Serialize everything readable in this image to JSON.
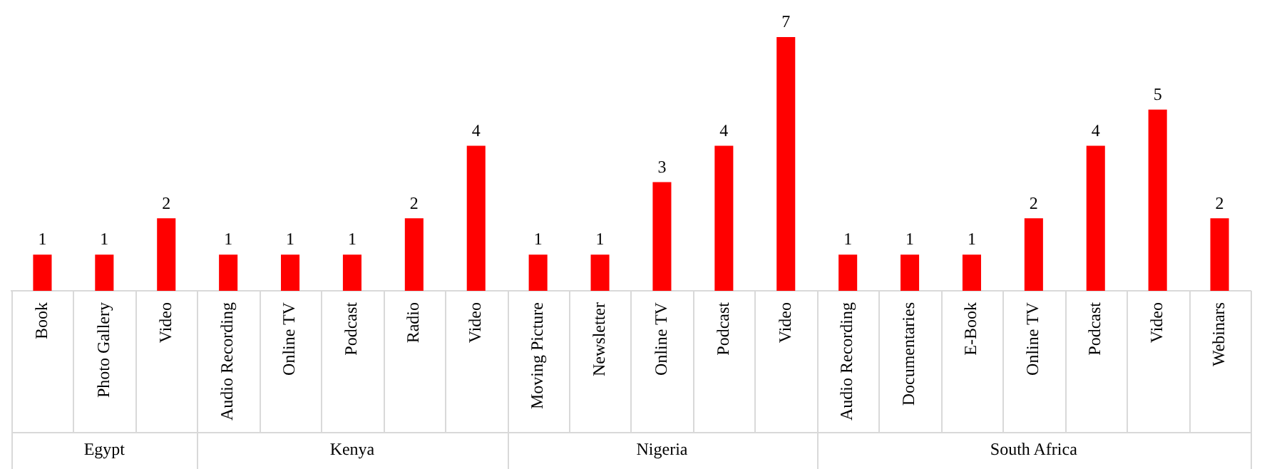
{
  "chart_data": {
    "type": "bar",
    "categories": [
      "Book",
      "Photo Gallery",
      "Video",
      "Audio Recording",
      "Online TV",
      "Podcast",
      "Radio",
      "Video",
      "Moving Picture",
      "Newsletter",
      "Online TV",
      "Podcast",
      "Video",
      "Audio Recording",
      "Documentaries",
      "E-Book",
      "Online TV",
      "Podcast",
      "Video",
      "Webinars"
    ],
    "series": [
      {
        "color": "#ff0000",
        "values": [
          1,
          1,
          2,
          null,
          null,
          null,
          null,
          null,
          null,
          null,
          null,
          null,
          null,
          null,
          null,
          null,
          null,
          null,
          null,
          null
        ]
      },
      {
        "color": "#ff0000",
        "values": [
          null,
          null,
          null,
          1,
          1,
          1,
          2,
          4,
          null,
          null,
          null,
          null,
          null,
          null,
          null,
          null,
          null,
          null,
          null,
          null
        ]
      },
      {
        "color": "#ff0000",
        "values": [
          null,
          null,
          null,
          null,
          null,
          null,
          null,
          null,
          1,
          1,
          3,
          4,
          7,
          null,
          null,
          null,
          null,
          null,
          null,
          null
        ]
      },
      {
        "color": "#ff0000",
        "values": [
          null,
          null,
          null,
          null,
          null,
          null,
          null,
          null,
          null,
          null,
          null,
          null,
          null,
          1,
          1,
          1,
          2,
          4,
          5,
          2
        ]
      }
    ],
    "annotations": [
      "Egypt",
      "Kenya",
      "Nigeria",
      "South Africa"
    ],
    "data_labels": true,
    "tick_labels": "x"
  }
}
